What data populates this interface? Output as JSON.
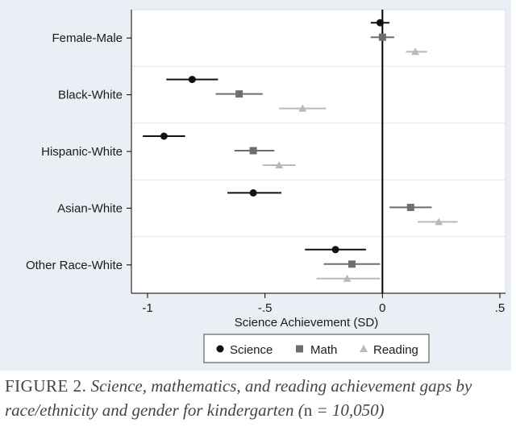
{
  "caption": {
    "lead": "FIGURE 2.",
    "body": "Science, mathematics, and reading achievement gaps by race/ethnicity and gender for kindergarten (",
    "n_label": "n",
    "n_value": " = 10,050",
    "close": ")"
  },
  "chart_data": {
    "type": "scatter",
    "orientation": "horizontal-dot-and-whisker",
    "xlabel": "Science Achievement (SD)",
    "xlim": [
      -1.05,
      0.52
    ],
    "xticks": [
      {
        "value": -1,
        "label": "-1"
      },
      {
        "value": -0.5,
        "label": "-.5"
      },
      {
        "value": 0,
        "label": "0"
      },
      {
        "value": 0.5,
        "label": ".5"
      }
    ],
    "reference_line_x": 0,
    "grid": "horizontal",
    "legend_position": "bottom",
    "categories": [
      "Female-Male",
      "Black-White",
      "Hispanic-White",
      "Asian-White",
      "Other Race-White"
    ],
    "series": [
      {
        "name": "Science",
        "marker": "circle",
        "color": "#111111",
        "points": [
          {
            "category": "Female-Male",
            "value": -0.01,
            "low": -0.05,
            "high": 0.03
          },
          {
            "category": "Black-White",
            "value": -0.81,
            "low": -0.92,
            "high": -0.7
          },
          {
            "category": "Hispanic-White",
            "value": -0.93,
            "low": -1.02,
            "high": -0.84
          },
          {
            "category": "Asian-White",
            "value": -0.55,
            "low": -0.66,
            "high": -0.43
          },
          {
            "category": "Other Race-White",
            "value": -0.2,
            "low": -0.33,
            "high": -0.07
          }
        ]
      },
      {
        "name": "Math",
        "marker": "square",
        "color": "#6e6e6e",
        "points": [
          {
            "category": "Female-Male",
            "value": 0.0,
            "low": -0.05,
            "high": 0.05
          },
          {
            "category": "Black-White",
            "value": -0.61,
            "low": -0.71,
            "high": -0.51
          },
          {
            "category": "Hispanic-White",
            "value": -0.55,
            "low": -0.63,
            "high": -0.46
          },
          {
            "category": "Asian-White",
            "value": 0.12,
            "low": 0.03,
            "high": 0.21
          },
          {
            "category": "Other Race-White",
            "value": -0.13,
            "low": -0.25,
            "high": -0.01
          }
        ]
      },
      {
        "name": "Reading",
        "marker": "triangle",
        "color": "#b9b9b9",
        "points": [
          {
            "category": "Female-Male",
            "value": 0.14,
            "low": 0.1,
            "high": 0.19
          },
          {
            "category": "Black-White",
            "value": -0.34,
            "low": -0.44,
            "high": -0.24
          },
          {
            "category": "Hispanic-White",
            "value": -0.44,
            "low": -0.51,
            "high": -0.37
          },
          {
            "category": "Asian-White",
            "value": 0.24,
            "low": 0.15,
            "high": 0.32
          },
          {
            "category": "Other Race-White",
            "value": -0.15,
            "low": -0.28,
            "high": -0.01
          }
        ]
      }
    ]
  }
}
